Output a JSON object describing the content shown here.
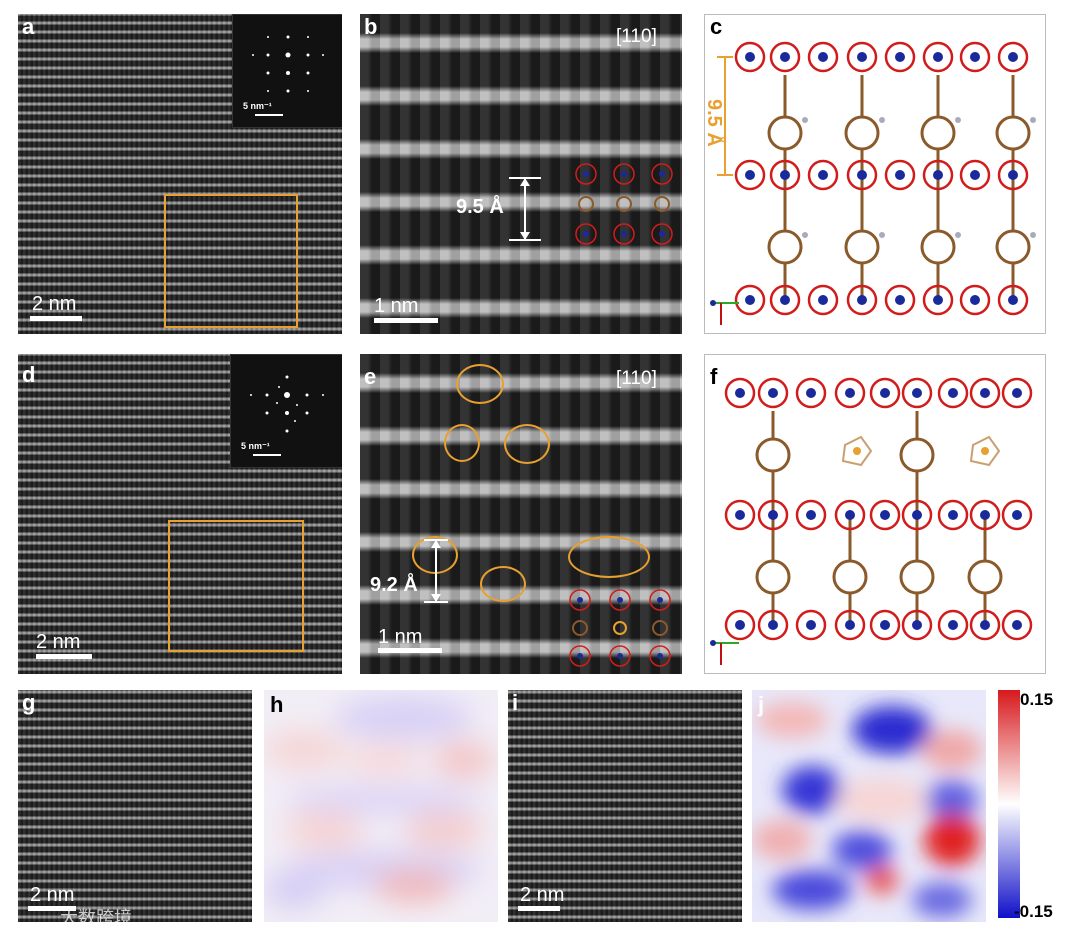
{
  "panels": {
    "a": {
      "label": "a",
      "scale": "2 nm",
      "inset_scale": "5 nm⁻¹"
    },
    "b": {
      "label": "b",
      "zone": "[110]",
      "spacing": "9.5 Å",
      "scale": "1 nm"
    },
    "c": {
      "label": "c",
      "spacing": "9.5 Å"
    },
    "d": {
      "label": "d",
      "scale": "2 nm",
      "inset_scale": "5 nm⁻¹"
    },
    "e": {
      "label": "e",
      "zone": "[110]",
      "spacing": "9.2 Å",
      "scale": "1 nm"
    },
    "f": {
      "label": "f"
    },
    "g": {
      "label": "g",
      "scale": "2 nm"
    },
    "h": {
      "label": "h"
    },
    "i": {
      "label": "i",
      "scale": "2 nm"
    },
    "j": {
      "label": "j"
    }
  },
  "colorbar": {
    "max": "0.15",
    "min": "-0.15",
    "colors": [
      "#d7191c",
      "#ffffff",
      "#1010c8"
    ]
  },
  "watermark": "大数跨境",
  "colors": {
    "highlight": "#e8a030",
    "metal": "#1a2a9a",
    "oxygen": "#d21c1c",
    "carbon": "#8b5a2b"
  }
}
